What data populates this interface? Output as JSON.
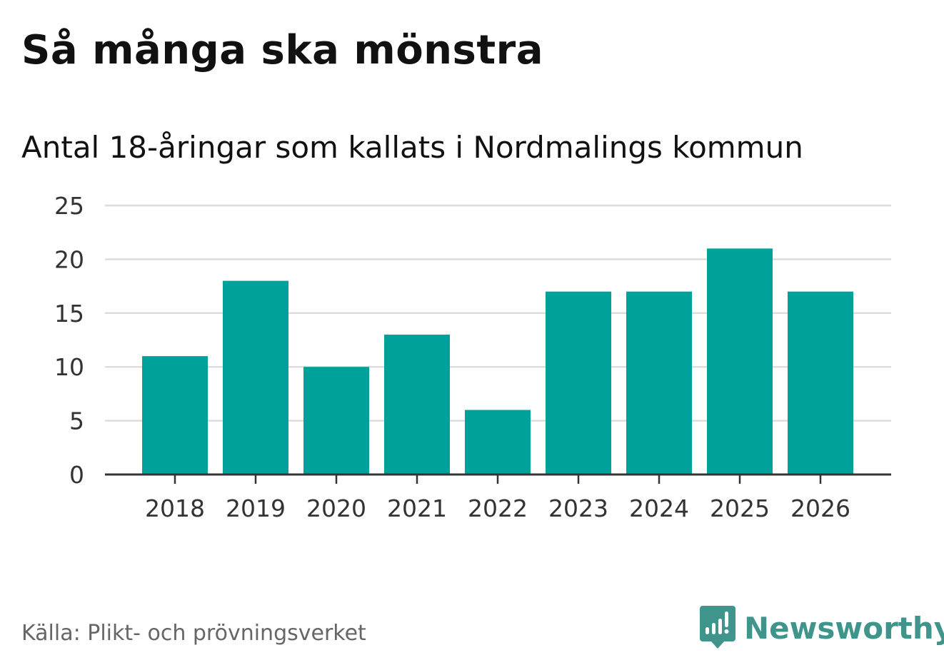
{
  "header": {
    "title": "Så många ska mönstra",
    "subtitle": "Antal 18-åringar som kallats i Nordmalings kommun"
  },
  "footer": {
    "source": "Källa: Plikt- och prövningsverket",
    "brand_name": "Newsworthy",
    "brand_icon": "newsworthy-logo-icon"
  },
  "colors": {
    "bar": "#00a19a",
    "grid": "#dddddd",
    "axis": "#333333",
    "brand": "#3f948c"
  },
  "chart_data": {
    "type": "bar",
    "title": "Så många ska mönstra",
    "subtitle": "Antal 18-åringar som kallats i Nordmalings kommun",
    "xlabel": "",
    "ylabel": "",
    "categories": [
      "2018",
      "2019",
      "2020",
      "2021",
      "2022",
      "2023",
      "2024",
      "2025",
      "2026"
    ],
    "values": [
      11,
      18,
      10,
      13,
      6,
      17,
      17,
      21,
      17
    ],
    "ylim": [
      0,
      25
    ],
    "yticks": [
      0,
      5,
      10,
      15,
      20,
      25
    ],
    "ytick_labels": [
      "0",
      "5",
      "10",
      "15",
      "20",
      "25"
    ],
    "grid": true,
    "legend": "none"
  }
}
